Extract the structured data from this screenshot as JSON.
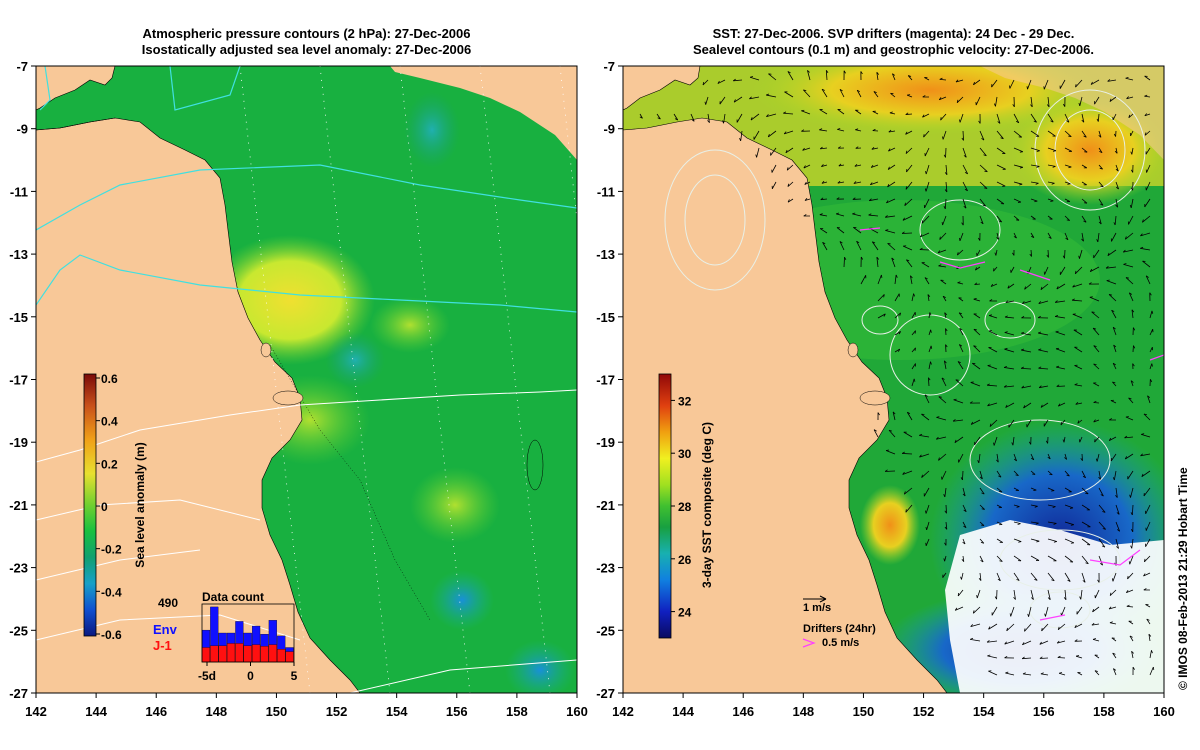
{
  "left_panel": {
    "title_line1": "Atmospheric pressure contours (2 hPa): 27-Dec-2006",
    "title_line2": "Isostatically adjusted sea level anomaly: 27-Dec-2006",
    "colorbar": {
      "label": "Sea level anomaly (m)",
      "ticks": [
        "0.6",
        "0.4",
        "0.2",
        "0",
        "-0.2",
        "-0.4",
        "-0.6"
      ],
      "tick_values": [
        0.6,
        0.4,
        0.2,
        0,
        -0.2,
        -0.4,
        -0.6
      ],
      "colors": [
        "#7a0a08",
        "#c8501a",
        "#f0a018",
        "#e8e030",
        "#90e030",
        "#18c040",
        "#10a070",
        "#18a0c8",
        "#1050d0",
        "#0a1880"
      ]
    },
    "data_count": {
      "title": "Data count",
      "max_label": "490",
      "max_value": 490,
      "legend_env": "Env",
      "legend_j1": "J-1",
      "env_color": "#1010ff",
      "j1_color": "#ff1010",
      "x_ticks": [
        "-5d",
        "0",
        "5"
      ],
      "x_tick_values": [
        -5,
        0,
        5
      ]
    }
  },
  "right_panel": {
    "title_line1": "SST: 27-Dec-2006. SVP drifters (magenta): 24 Dec - 29 Dec.",
    "title_line2": "Sealevel contours (0.1 m) and geostrophic velocity: 27-Dec-2006.",
    "colorbar": {
      "label": "3-day SST composite (deg C)",
      "ticks": [
        "32",
        "30",
        "28",
        "26",
        "24"
      ],
      "tick_values": [
        32,
        30,
        28,
        26,
        24
      ],
      "range": [
        23,
        33
      ],
      "colors": [
        "#0a0a60",
        "#1020c0",
        "#1080e0",
        "#18b0b0",
        "#18a040",
        "#40c030",
        "#a0e020",
        "#f0f020",
        "#f0a010",
        "#e04010",
        "#900808"
      ]
    },
    "velocity_scale_label": "1 m/s",
    "drifters_label": "Drifters (24hr)",
    "drifter_speed_label": "0.5 m/s",
    "drifter_color": "#ff40ff"
  },
  "axes": {
    "x_ticks": [
      "142",
      "144",
      "146",
      "148",
      "150",
      "152",
      "154",
      "156",
      "158",
      "160"
    ],
    "x_values": [
      142,
      144,
      146,
      148,
      150,
      152,
      154,
      156,
      158,
      160
    ],
    "y_ticks": [
      "-7",
      "-9",
      "-11",
      "-13",
      "-15",
      "-17",
      "-19",
      "-21",
      "-23",
      "-25",
      "-27"
    ],
    "y_values": [
      -7,
      -9,
      -11,
      -13,
      -15,
      -17,
      -19,
      -21,
      -23,
      -25,
      -27
    ],
    "lon_range": [
      142,
      160
    ],
    "lat_range": [
      -27,
      -7
    ]
  },
  "colors": {
    "land": "#f8c898",
    "ocean_green": "#10b040",
    "pressure_contour": "#40e0e0"
  },
  "credit": "© IMOS 08-Feb-2013 21:29 Hobart Time"
}
